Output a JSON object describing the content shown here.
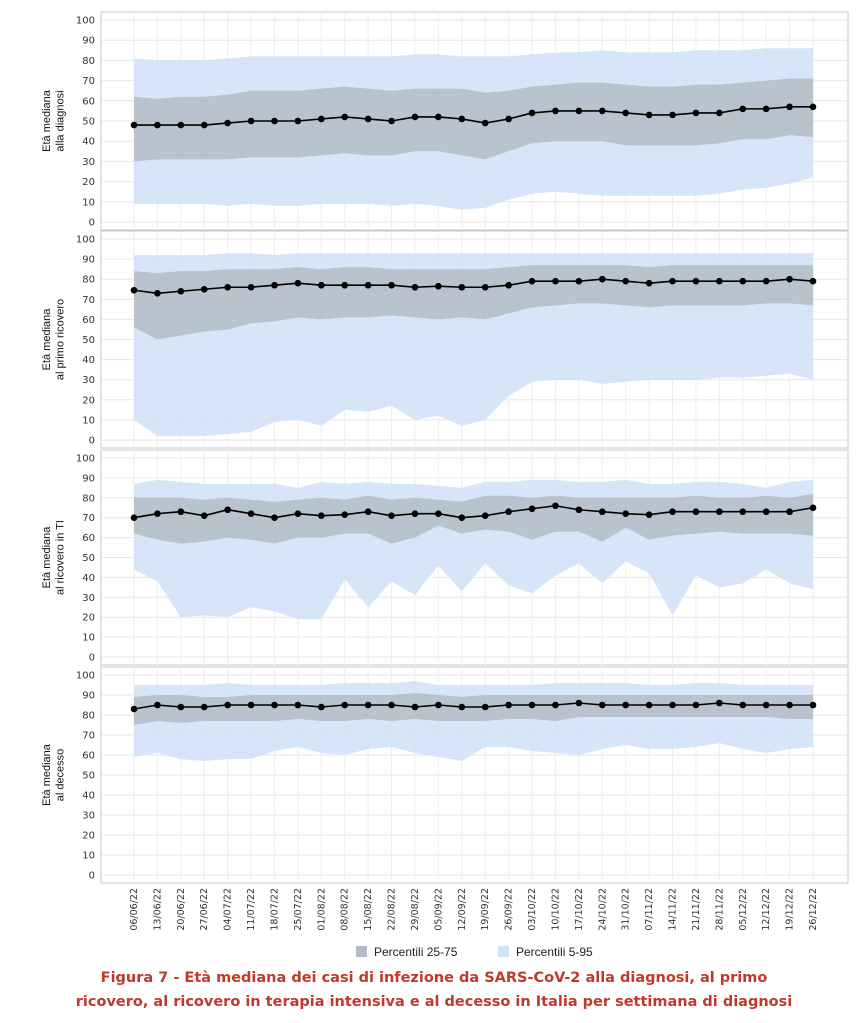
{
  "caption": {
    "line1": "Figura 7 - Età mediana dei casi di infezione da SARS-CoV-2 alla diagnosi, al primo",
    "line2": "ricovero, al ricovero in terapia intensiva e al decesso in Italia per settimana di diagnosi"
  },
  "legend": {
    "iqr_label": "Percentili 25-75",
    "p5_95_label": "Percentili 5-95"
  },
  "colors": {
    "iqr_band": "#b3bcc6",
    "p5_95_band": "#cfe2f7",
    "median_line": "#000000"
  },
  "chart_data": {
    "type": "line",
    "ylim": [
      0,
      100
    ],
    "yticks": [
      0,
      10,
      20,
      30,
      40,
      50,
      60,
      70,
      80,
      90,
      100
    ],
    "x": [
      "06/06/22",
      "13/06/22",
      "20/06/22",
      "27/06/22",
      "04/07/22",
      "11/07/22",
      "18/07/22",
      "25/07/22",
      "01/08/22",
      "08/08/22",
      "15/08/22",
      "22/08/22",
      "29/08/22",
      "05/09/22",
      "12/09/22",
      "19/09/22",
      "26/09/22",
      "03/10/22",
      "10/10/22",
      "17/10/22",
      "24/10/22",
      "31/10/22",
      "07/11/22",
      "14/11/22",
      "21/11/22",
      "28/11/22",
      "05/12/22",
      "12/12/22",
      "19/12/22",
      "26/12/22"
    ],
    "panels": [
      {
        "ylabel_line1": "Età mediana",
        "ylabel_line2": "alla diagnosi",
        "median": [
          48,
          48,
          48,
          48,
          49,
          50,
          50,
          50,
          51,
          52,
          51,
          50,
          52,
          52,
          51,
          49,
          51,
          54,
          55,
          55,
          55,
          54,
          53,
          53,
          54,
          54,
          56,
          56,
          57,
          57
        ],
        "p25": [
          30,
          31,
          31,
          31,
          31,
          32,
          32,
          32,
          33,
          34,
          33,
          33,
          35,
          35,
          33,
          31,
          35,
          39,
          40,
          40,
          40,
          38,
          38,
          38,
          38,
          39,
          41,
          41,
          43,
          42
        ],
        "p75": [
          62,
          61,
          62,
          62,
          63,
          65,
          65,
          65,
          66,
          67,
          66,
          65,
          66,
          66,
          66,
          64,
          65,
          67,
          68,
          69,
          69,
          68,
          67,
          67,
          68,
          68,
          69,
          70,
          71,
          71
        ],
        "p5": [
          9,
          9,
          9,
          9,
          8,
          9,
          8,
          8,
          9,
          9,
          9,
          8,
          9,
          8,
          6,
          7,
          11,
          14,
          15,
          14,
          13,
          13,
          13,
          13,
          13,
          14,
          16,
          17,
          19,
          22
        ],
        "p95": [
          81,
          80,
          80,
          80,
          81,
          82,
          82,
          82,
          82,
          82,
          82,
          82,
          83,
          83,
          82,
          82,
          82,
          83,
          84,
          84,
          85,
          84,
          84,
          84,
          85,
          85,
          85,
          86,
          86,
          86
        ]
      },
      {
        "ylabel_line1": "Età mediana",
        "ylabel_line2": "al primo ricovero",
        "median": [
          74.5,
          73,
          74,
          75,
          76,
          76,
          77,
          78,
          77,
          77,
          77,
          77,
          76,
          76.5,
          76,
          76,
          77,
          79,
          79,
          79,
          80,
          79,
          78,
          79,
          79,
          79,
          79,
          79,
          80,
          79
        ],
        "p25": [
          56,
          50,
          52,
          54,
          55,
          58,
          59,
          61,
          60,
          61,
          61,
          62,
          61,
          60,
          61,
          60,
          63,
          66,
          67,
          68,
          68,
          67,
          66,
          67,
          67,
          67,
          67,
          68,
          68,
          67
        ],
        "p75": [
          84,
          83,
          84,
          84,
          85,
          85,
          85,
          86,
          85,
          86,
          86,
          85,
          85,
          85,
          85,
          85,
          86,
          87,
          87,
          87,
          87,
          87,
          86,
          87,
          87,
          87,
          87,
          87,
          87,
          87
        ],
        "p5": [
          10,
          2,
          2,
          2,
          3,
          4,
          9,
          10,
          7,
          15,
          14,
          17,
          10,
          12,
          7,
          10,
          22,
          29,
          30,
          30,
          28,
          29,
          30,
          30,
          30,
          31,
          31,
          32,
          33,
          30
        ],
        "p95": [
          92,
          92,
          92,
          92,
          93,
          93,
          92,
          93,
          93,
          93,
          93,
          93,
          93,
          93,
          93,
          93,
          93,
          93,
          93,
          93,
          93,
          93,
          93,
          93,
          93,
          93,
          93,
          93,
          93,
          93
        ]
      },
      {
        "ylabel_line1": "Età mediana",
        "ylabel_line2": "al ricovero in TI",
        "median": [
          70,
          72,
          73,
          71,
          74,
          72,
          70,
          72,
          71,
          71.5,
          73,
          71,
          72,
          72,
          70,
          71,
          73,
          74.5,
          76,
          74,
          73,
          72,
          71.5,
          73,
          73,
          73,
          73,
          73,
          73,
          75
        ],
        "p25": [
          62,
          59,
          57,
          58,
          60,
          59,
          57,
          60,
          60,
          62,
          62,
          57,
          60,
          66,
          62,
          64,
          63,
          59,
          63,
          63,
          58,
          65,
          59,
          61,
          62,
          63,
          62,
          62,
          62,
          61
        ],
        "p75": [
          80,
          80,
          80,
          79,
          80,
          79,
          78,
          79,
          80,
          79,
          81,
          79,
          80,
          79,
          78,
          81,
          81,
          80,
          81,
          80,
          80,
          80,
          80,
          80,
          81,
          80,
          80,
          81,
          80,
          82
        ],
        "p5": [
          44,
          38,
          20,
          21,
          20,
          25,
          23,
          19,
          19,
          39,
          25,
          38,
          31,
          46,
          33,
          47,
          36,
          32,
          41,
          47,
          37,
          48,
          42,
          21,
          41,
          35,
          37,
          44,
          37,
          34
        ],
        "p95": [
          87,
          89,
          88,
          87,
          87,
          87,
          87,
          85,
          88,
          87,
          88,
          87,
          87,
          86,
          85,
          88,
          88,
          89,
          89,
          88,
          88,
          89,
          87,
          87,
          88,
          88,
          87,
          85,
          88,
          89
        ]
      },
      {
        "ylabel_line1": "Età mediana",
        "ylabel_line2": "al decesso",
        "median": [
          83,
          85,
          84,
          84,
          85,
          85,
          85,
          85,
          84,
          85,
          85,
          85,
          84,
          85,
          84,
          84,
          85,
          85,
          85,
          86,
          85,
          85,
          85,
          85,
          85,
          86,
          85,
          85,
          85,
          85
        ],
        "p25": [
          75,
          77,
          76,
          77,
          77,
          77,
          77,
          78,
          77,
          77,
          78,
          77,
          78,
          77,
          77,
          77,
          78,
          78,
          77,
          79,
          79,
          79,
          79,
          79,
          79,
          79,
          79,
          79,
          78,
          78
        ],
        "p75": [
          89,
          90,
          90,
          89,
          89,
          90,
          90,
          90,
          90,
          90,
          90,
          90,
          91,
          90,
          89,
          90,
          90,
          90,
          90,
          90,
          90,
          90,
          90,
          90,
          90,
          90,
          90,
          90,
          90,
          90
        ],
        "p5": [
          59,
          61,
          58,
          57,
          58,
          58,
          62,
          64,
          61,
          60,
          63,
          64,
          61,
          59,
          57,
          64,
          64,
          62,
          61,
          60,
          63,
          65,
          63,
          63,
          64,
          66,
          63,
          61,
          63,
          64
        ],
        "p95": [
          95,
          95,
          95,
          95,
          96,
          95,
          95,
          95,
          95,
          96,
          96,
          96,
          97,
          95,
          95,
          95,
          95,
          95,
          96,
          96,
          96,
          96,
          95,
          95,
          96,
          96,
          95,
          95,
          95,
          95
        ]
      }
    ]
  }
}
